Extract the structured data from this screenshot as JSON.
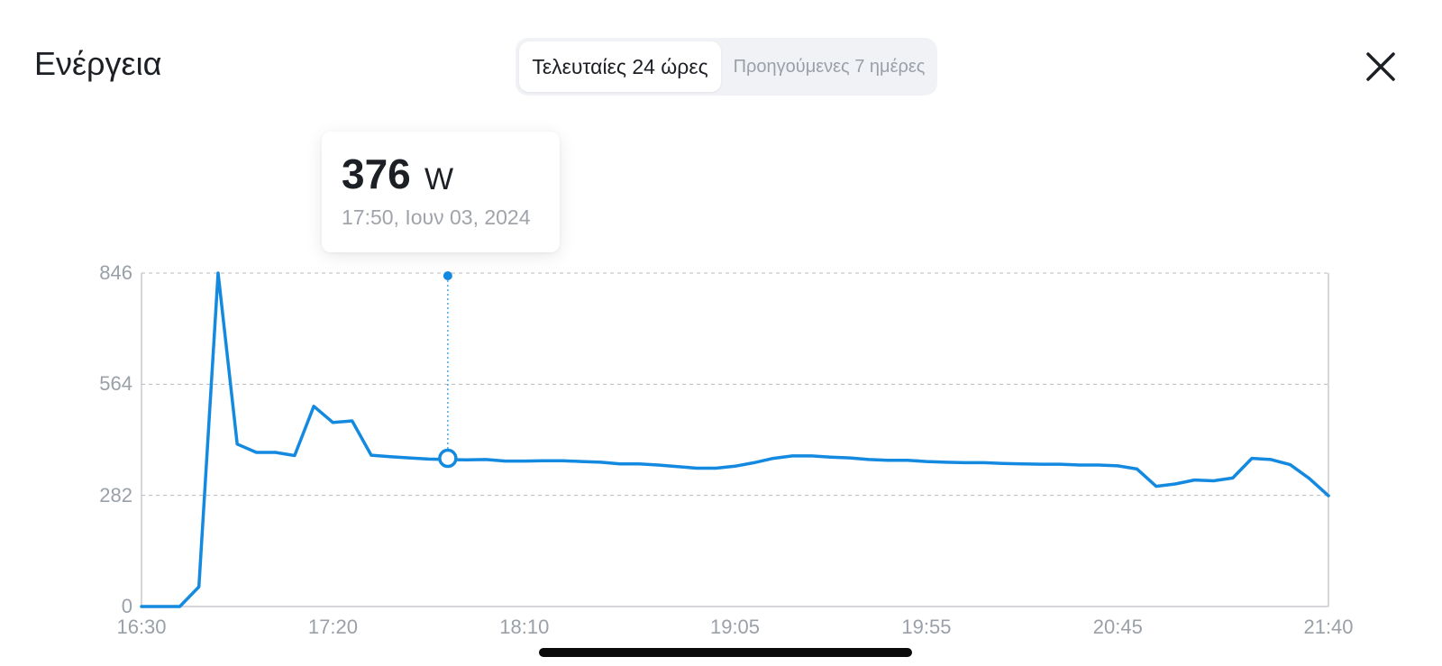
{
  "header": {
    "title": "Ενέργεια",
    "tabs": [
      {
        "label": "Τελευταίες 24 ώρες",
        "active": true
      },
      {
        "label": "Προηγούμενες 7 ημέρες",
        "active": false
      }
    ],
    "close_icon": "close-icon"
  },
  "tooltip": {
    "value": "376",
    "unit": "W",
    "timestamp": "17:50, Ιουν 03, 2024"
  },
  "colors": {
    "line": "#1489e0",
    "grid": "#b7b9bd",
    "axis_text": "#9aa0a8"
  },
  "chart_data": {
    "type": "line",
    "title": "",
    "xlabel": "",
    "ylabel": "",
    "y_ticks": [
      "0",
      "282",
      "564",
      "846"
    ],
    "x_ticks": [
      "16:30",
      "17:20",
      "18:10",
      "19:05",
      "19:55",
      "20:45",
      "21:40"
    ],
    "ylim": [
      0,
      846
    ],
    "x_start": "16:30",
    "x_end": "21:40",
    "selected_point": {
      "x": "17:50",
      "y": 376
    },
    "series": [
      {
        "name": "",
        "values": [
          0,
          0,
          0,
          50,
          846,
          412,
          391,
          391,
          383,
          508,
          467,
          471,
          384,
          380,
          377,
          374,
          373,
          372,
          373,
          369,
          369,
          370,
          370,
          368,
          366,
          362,
          362,
          359,
          355,
          351,
          351,
          356,
          365,
          376,
          382,
          382,
          379,
          377,
          373,
          371,
          371,
          368,
          366,
          365,
          365,
          363,
          362,
          361,
          361,
          359,
          359,
          357,
          349,
          305,
          311,
          321,
          319,
          326,
          376,
          373,
          360,
          325,
          281
        ]
      }
    ]
  }
}
